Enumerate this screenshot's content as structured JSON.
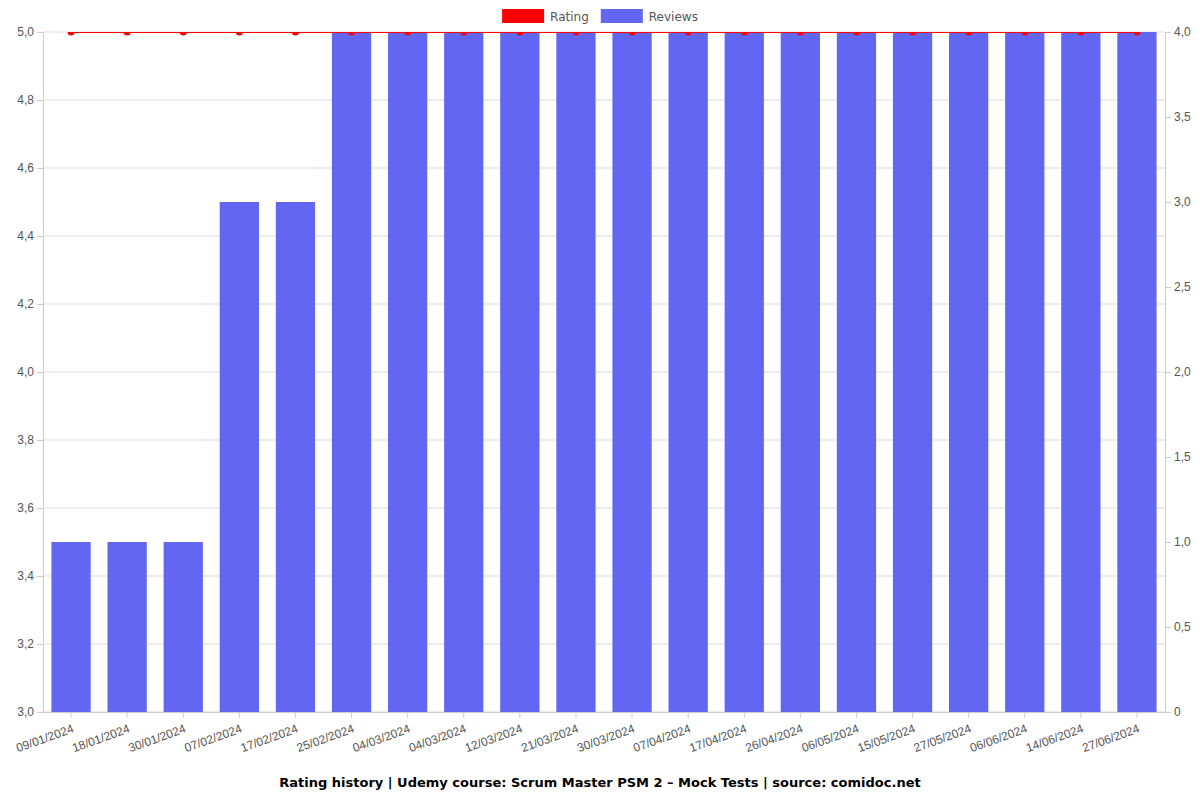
{
  "chart_data": {
    "type": "bar",
    "title": "Rating history | Udemy course: Scrum Master PSM 2 – Mock Tests | source: comidoc.net",
    "categories": [
      "09/01/2024",
      "18/01/2024",
      "30/01/2024",
      "07/02/2024",
      "17/02/2024",
      "25/02/2024",
      "04/03/2024",
      "04/03/2024",
      "12/03/2024",
      "21/03/2024",
      "30/03/2024",
      "07/04/2024",
      "17/04/2024",
      "26/04/2024",
      "06/05/2024",
      "15/05/2024",
      "27/05/2024",
      "06/06/2024",
      "14/06/2024",
      "27/06/2024"
    ],
    "series": [
      {
        "name": "Rating",
        "type": "line",
        "color": "#ff0000",
        "marker": "circle",
        "values": [
          5,
          5,
          5,
          5,
          5,
          5,
          5,
          5,
          5,
          5,
          5,
          5,
          5,
          5,
          5,
          5,
          5,
          5,
          5,
          5
        ]
      },
      {
        "name": "Reviews",
        "type": "bar",
        "color": "#6366f1",
        "axis": "y2",
        "values": [
          1,
          1,
          1,
          3,
          3,
          4,
          4,
          4,
          4,
          4,
          4,
          4,
          4,
          4,
          4,
          4,
          4,
          4,
          4,
          4
        ]
      }
    ],
    "ylim": [
      3,
      5
    ],
    "yticks": [
      {
        "value": 3,
        "label": "3,0"
      },
      {
        "value": 3.2,
        "label": "3,2"
      },
      {
        "value": 3.4,
        "label": "3,4"
      },
      {
        "value": 3.6,
        "label": "3,6"
      },
      {
        "value": 3.8,
        "label": "3,8"
      },
      {
        "value": 4,
        "label": "4,0"
      },
      {
        "value": 4.2,
        "label": "4,2"
      },
      {
        "value": 4.4,
        "label": "4,4"
      },
      {
        "value": 4.6,
        "label": "4,6"
      },
      {
        "value": 4.8,
        "label": "4,8"
      },
      {
        "value": 5,
        "label": "5,0"
      }
    ],
    "y2lim": [
      0,
      4
    ],
    "y2ticks": [
      0,
      {
        "value": 0.5,
        "label": "0,5"
      },
      {
        "value": 1,
        "label": "1,0"
      },
      {
        "value": 1.5,
        "label": "1,5"
      },
      {
        "value": 2,
        "label": "2,0"
      },
      {
        "value": 2.5,
        "label": "2,5"
      },
      {
        "value": 3,
        "label": "3,0"
      },
      {
        "value": 3.5,
        "label": "3,5"
      },
      {
        "value": 4,
        "label": "4,0"
      }
    ],
    "grid": true,
    "legend": "top"
  }
}
